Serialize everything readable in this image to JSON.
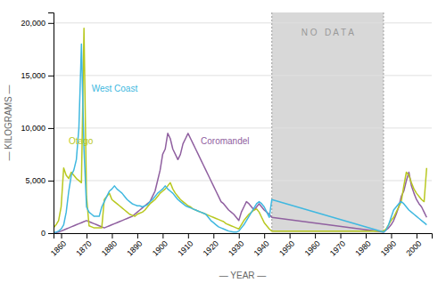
{
  "chart_data": {
    "type": "line",
    "x_label": "— YEAR —",
    "y_label": "— KILOGRAMS —",
    "xlim": [
      1857,
      2006
    ],
    "ylim": [
      0,
      21000
    ],
    "xticks": [
      1860,
      1870,
      1880,
      1890,
      1900,
      1910,
      1920,
      1930,
      1940,
      1950,
      1960,
      1970,
      1980,
      1990,
      2000
    ],
    "yticks": [
      0,
      {
        "value": 5000,
        "label": "5,000"
      },
      {
        "value": 10000,
        "label": "10,000"
      },
      {
        "value": 15000,
        "label": "15,000"
      },
      {
        "value": 20000,
        "label": "20,000"
      }
    ],
    "grid": true,
    "x": [
      1857,
      1858,
      1859,
      1860,
      1861,
      1862,
      1863,
      1864,
      1865,
      1866,
      1867,
      1868,
      1869,
      1870,
      1871,
      1872,
      1873,
      1874,
      1875,
      1876,
      1877,
      1878,
      1879,
      1880,
      1881,
      1882,
      1883,
      1884,
      1885,
      1886,
      1887,
      1888,
      1889,
      1890,
      1891,
      1892,
      1893,
      1894,
      1895,
      1896,
      1897,
      1898,
      1899,
      1900,
      1901,
      1902,
      1903,
      1904,
      1905,
      1906,
      1907,
      1908,
      1909,
      1910,
      1911,
      1912,
      1913,
      1914,
      1915,
      1916,
      1917,
      1918,
      1919,
      1920,
      1921,
      1922,
      1923,
      1924,
      1925,
      1926,
      1927,
      1928,
      1929,
      1930,
      1931,
      1932,
      1933,
      1934,
      1935,
      1936,
      1937,
      1938,
      1939,
      1940,
      1941,
      1942,
      1943,
      1987,
      1988,
      1989,
      1990,
      1991,
      1992,
      1993,
      1994,
      1995,
      1996,
      1997,
      1998,
      1999,
      2000,
      2001,
      2002,
      2003,
      2004
    ],
    "series": [
      {
        "name": "Coromandel",
        "color": "#9060a0",
        "values": [
          20,
          50,
          100,
          200,
          300,
          400,
          500,
          600,
          700,
          800,
          900,
          1000,
          1100,
          1200,
          1100,
          1000,
          900,
          800,
          700,
          600,
          500,
          600,
          700,
          800,
          900,
          1000,
          1100,
          1200,
          1300,
          1400,
          1500,
          1600,
          1800,
          2000,
          2200,
          2400,
          2600,
          2800,
          3000,
          3500,
          4000,
          5000,
          6000,
          7500,
          8000,
          9500,
          9000,
          8000,
          7500,
          7000,
          7500,
          8500,
          9000,
          9500,
          9000,
          8500,
          8000,
          7500,
          7000,
          6500,
          6000,
          5500,
          5000,
          4500,
          4000,
          3500,
          3000,
          2800,
          2500,
          2200,
          2000,
          1800,
          1500,
          1200,
          2000,
          2500,
          3000,
          2800,
          2500,
          2200,
          2500,
          2800,
          2500,
          2200,
          2000,
          1800,
          1500,
          100,
          300,
          500,
          800,
          1200,
          1800,
          2500,
          3500,
          4000,
          5000,
          5800,
          4500,
          3800,
          3200,
          2800,
          2500,
          2000,
          1500
        ]
      },
      {
        "name": "Otago",
        "color": "#b8c820",
        "values": [
          500,
          800,
          1200,
          2500,
          6200,
          5500,
          5200,
          5800,
          5500,
          5200,
          5000,
          4800,
          19500,
          3500,
          700,
          600,
          500,
          500,
          500,
          500,
          3200,
          3500,
          3800,
          3200,
          3000,
          2800,
          2600,
          2400,
          2200,
          2000,
          1800,
          1700,
          1600,
          1800,
          1900,
          2000,
          2200,
          2500,
          2800,
          3000,
          3200,
          3500,
          3800,
          4000,
          4200,
          4500,
          4800,
          4200,
          3800,
          3500,
          3200,
          3000,
          2800,
          2600,
          2500,
          2300,
          2200,
          2100,
          2000,
          1900,
          1800,
          1700,
          1600,
          1500,
          1400,
          1300,
          1200,
          1100,
          900,
          800,
          700,
          600,
          500,
          400,
          800,
          1200,
          1500,
          1800,
          2000,
          2200,
          2300,
          2000,
          1500,
          1000,
          700,
          400,
          200,
          200,
          400,
          800,
          1200,
          1500,
          2000,
          2500,
          3000,
          4500,
          5800,
          5500,
          4800,
          4200,
          3800,
          3500,
          3200,
          3000,
          6200
        ]
      },
      {
        "name": "West Coast",
        "color": "#40b8e0",
        "values": [
          50,
          100,
          200,
          400,
          800,
          2000,
          4000,
          5500,
          6000,
          7000,
          10000,
          18000,
          8000,
          2500,
          2000,
          1800,
          1600,
          1600,
          1600,
          2500,
          3000,
          3500,
          4000,
          4200,
          4500,
          4200,
          4000,
          3800,
          3500,
          3200,
          3000,
          2800,
          2700,
          2600,
          2600,
          2500,
          2600,
          2700,
          3000,
          3200,
          3500,
          3800,
          4000,
          4200,
          4500,
          4200,
          4000,
          3800,
          3500,
          3200,
          3000,
          2800,
          2600,
          2500,
          2400,
          2300,
          2200,
          2100,
          2000,
          1900,
          1800,
          1500,
          1200,
          1000,
          800,
          600,
          500,
          400,
          300,
          200,
          150,
          100,
          100,
          200,
          500,
          800,
          1200,
          1600,
          2000,
          2400,
          2800,
          3000,
          2800,
          2500,
          2000,
          1500,
          3200,
          100,
          300,
          800,
          1500,
          2200,
          2500,
          2800,
          3000,
          2800,
          2500,
          2200,
          2000,
          1800,
          1600,
          1400,
          1200,
          1000,
          800
        ]
      }
    ],
    "spans": [
      {
        "x0": 1943,
        "x1": 1987,
        "color": "#d8d8d8",
        "label": "N O   D A T A",
        "label_y": 19000
      }
    ],
    "annotations": [
      {
        "text": "Otago",
        "x": 1863,
        "y": 8500,
        "color": "#b8c820"
      },
      {
        "text": "West Coast",
        "x": 1872,
        "y": 13500,
        "color": "#40b8e0"
      },
      {
        "text": "Coromandel",
        "x": 1915,
        "y": 8500,
        "color": "#9060a0"
      }
    ]
  }
}
